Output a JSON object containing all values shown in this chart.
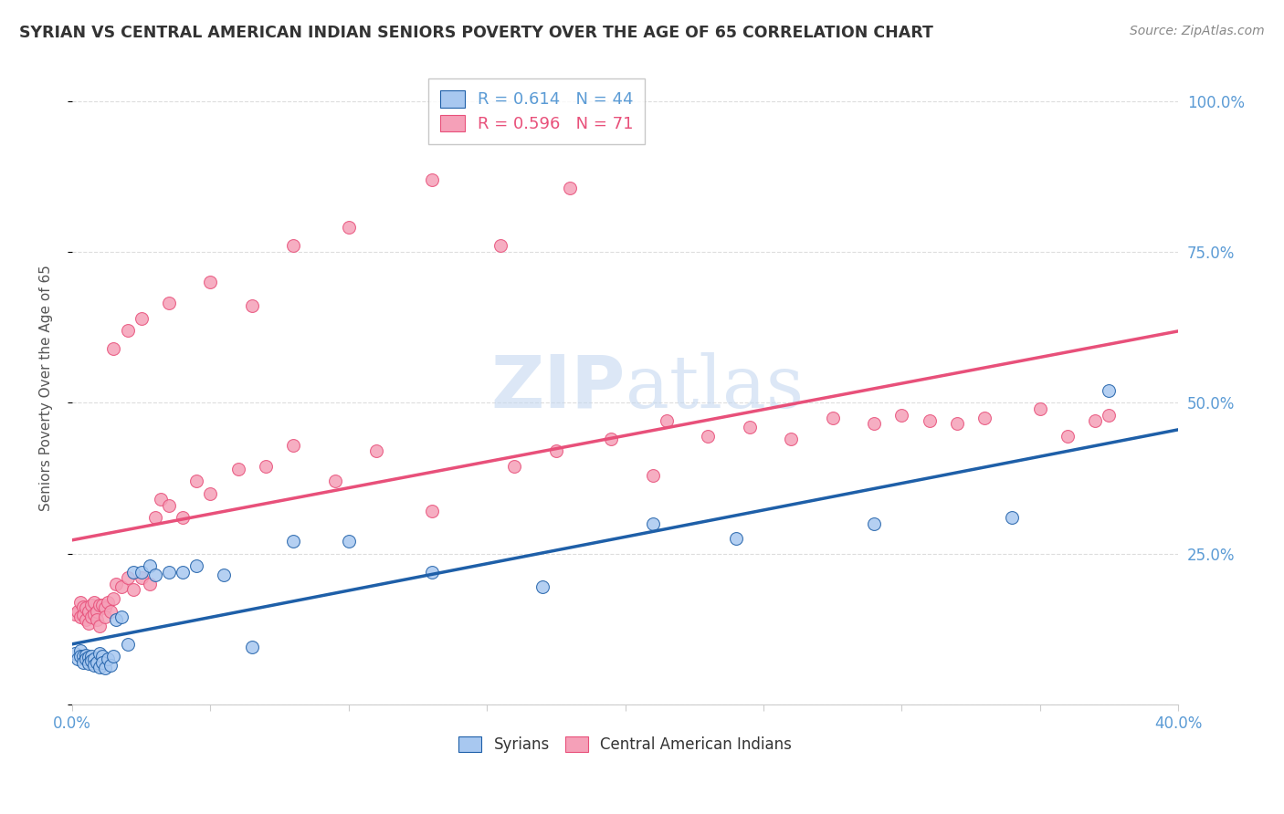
{
  "title": "SYRIAN VS CENTRAL AMERICAN INDIAN SENIORS POVERTY OVER THE AGE OF 65 CORRELATION CHART",
  "source": "Source: ZipAtlas.com",
  "ylabel": "Seniors Poverty Over the Age of 65",
  "xlim": [
    0.0,
    0.4
  ],
  "ylim": [
    0.0,
    1.05
  ],
  "syrian_R": 0.614,
  "syrian_N": 44,
  "cai_R": 0.596,
  "cai_N": 71,
  "syrian_color": "#A8C8F0",
  "cai_color": "#F5A0B8",
  "syrian_line_color": "#1E5FA8",
  "cai_line_color": "#E8507A",
  "watermark_zip": "ZIP",
  "watermark_atlas": "atlas",
  "background_color": "#FFFFFF",
  "grid_color": "#DDDDDD",
  "title_color": "#333333",
  "axis_label_color": "#5B9BD5",
  "syrian_x": [
    0.001,
    0.002,
    0.003,
    0.003,
    0.004,
    0.004,
    0.005,
    0.005,
    0.006,
    0.006,
    0.007,
    0.007,
    0.008,
    0.008,
    0.009,
    0.01,
    0.01,
    0.011,
    0.011,
    0.012,
    0.013,
    0.014,
    0.015,
    0.016,
    0.018,
    0.02,
    0.022,
    0.025,
    0.028,
    0.03,
    0.035,
    0.04,
    0.045,
    0.055,
    0.065,
    0.08,
    0.1,
    0.13,
    0.17,
    0.21,
    0.24,
    0.29,
    0.34,
    0.375
  ],
  "syrian_y": [
    0.085,
    0.075,
    0.09,
    0.08,
    0.08,
    0.07,
    0.082,
    0.075,
    0.078,
    0.068,
    0.08,
    0.072,
    0.075,
    0.065,
    0.07,
    0.085,
    0.062,
    0.08,
    0.07,
    0.06,
    0.075,
    0.065,
    0.08,
    0.14,
    0.145,
    0.1,
    0.22,
    0.22,
    0.23,
    0.215,
    0.22,
    0.22,
    0.23,
    0.215,
    0.095,
    0.27,
    0.27,
    0.22,
    0.195,
    0.3,
    0.275,
    0.3,
    0.31,
    0.52
  ],
  "cai_x": [
    0.001,
    0.002,
    0.003,
    0.003,
    0.004,
    0.004,
    0.005,
    0.005,
    0.006,
    0.006,
    0.007,
    0.007,
    0.008,
    0.008,
    0.009,
    0.009,
    0.01,
    0.01,
    0.011,
    0.012,
    0.012,
    0.013,
    0.014,
    0.015,
    0.016,
    0.018,
    0.02,
    0.022,
    0.025,
    0.028,
    0.03,
    0.032,
    0.035,
    0.04,
    0.045,
    0.05,
    0.06,
    0.07,
    0.08,
    0.095,
    0.11,
    0.13,
    0.16,
    0.175,
    0.195,
    0.21,
    0.215,
    0.23,
    0.245,
    0.26,
    0.275,
    0.29,
    0.3,
    0.31,
    0.32,
    0.33,
    0.35,
    0.36,
    0.37,
    0.375,
    0.015,
    0.02,
    0.025,
    0.035,
    0.05,
    0.065,
    0.08,
    0.1,
    0.13,
    0.155,
    0.18
  ],
  "cai_y": [
    0.15,
    0.155,
    0.17,
    0.145,
    0.162,
    0.148,
    0.16,
    0.14,
    0.155,
    0.135,
    0.165,
    0.145,
    0.17,
    0.15,
    0.155,
    0.14,
    0.165,
    0.13,
    0.165,
    0.16,
    0.145,
    0.17,
    0.155,
    0.175,
    0.2,
    0.195,
    0.21,
    0.19,
    0.21,
    0.2,
    0.31,
    0.34,
    0.33,
    0.31,
    0.37,
    0.35,
    0.39,
    0.395,
    0.43,
    0.37,
    0.42,
    0.32,
    0.395,
    0.42,
    0.44,
    0.38,
    0.47,
    0.445,
    0.46,
    0.44,
    0.475,
    0.465,
    0.48,
    0.47,
    0.465,
    0.475,
    0.49,
    0.445,
    0.47,
    0.48,
    0.59,
    0.62,
    0.64,
    0.665,
    0.7,
    0.66,
    0.76,
    0.79,
    0.87,
    0.76,
    0.855
  ]
}
